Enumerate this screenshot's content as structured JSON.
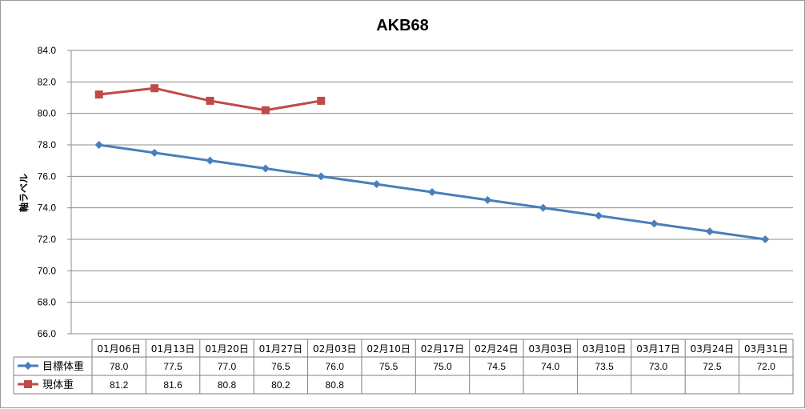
{
  "chart_data": {
    "type": "line",
    "title": "AKB68",
    "ylabel": "軸ラベル",
    "xlabel": "",
    "ylim": [
      66.0,
      84.0
    ],
    "ytick_step": 2.0,
    "grid": true,
    "legend": "data-table-left",
    "categories": [
      "01月06日",
      "01月13日",
      "01月20日",
      "01月27日",
      "02月03日",
      "02月10日",
      "02月17日",
      "02月24日",
      "03月03日",
      "03月10日",
      "03月17日",
      "03月24日",
      "03月31日"
    ],
    "series": [
      {
        "name": "目標体重",
        "color": "#4a7ebb",
        "marker": "diamond",
        "values": [
          78.0,
          77.5,
          77.0,
          76.5,
          76.0,
          75.5,
          75.0,
          74.5,
          74.0,
          73.5,
          73.0,
          72.5,
          72.0
        ],
        "labels": [
          "78.0",
          "77.5",
          "77.0",
          "76.5",
          "76.0",
          "75.5",
          "75.0",
          "74.5",
          "74.0",
          "73.5",
          "73.0",
          "72.5",
          "72.0"
        ]
      },
      {
        "name": "現体重",
        "color": "#be4b48",
        "marker": "square",
        "values": [
          81.2,
          81.6,
          80.8,
          80.2,
          80.8,
          null,
          null,
          null,
          null,
          null,
          null,
          null,
          null
        ],
        "labels": [
          "81.2",
          "81.6",
          "80.8",
          "80.2",
          "80.8",
          "",
          "",
          "",
          "",
          "",
          "",
          "",
          ""
        ]
      }
    ]
  }
}
